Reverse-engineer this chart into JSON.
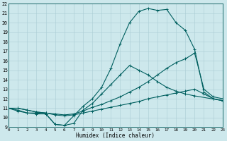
{
  "xlabel": "Humidex (Indice chaleur)",
  "bg_color": "#cde8ec",
  "grid_color": "#aacdd4",
  "line_color": "#005f5f",
  "xlim": [
    0,
    23
  ],
  "ylim": [
    9,
    22
  ],
  "xticks": [
    0,
    1,
    2,
    3,
    4,
    5,
    6,
    7,
    8,
    9,
    10,
    11,
    12,
    13,
    14,
    15,
    16,
    17,
    18,
    19,
    20,
    21,
    22,
    23
  ],
  "yticks": [
    9,
    10,
    11,
    12,
    13,
    14,
    15,
    16,
    17,
    18,
    19,
    20,
    21,
    22
  ],
  "curve1_x": [
    0,
    1,
    2,
    3,
    4,
    5,
    6,
    7,
    8,
    9,
    10,
    11,
    12,
    13,
    14,
    15,
    16,
    17,
    18,
    19,
    20,
    21,
    22,
    23
  ],
  "curve1_y": [
    11,
    10.7,
    10.5,
    10.5,
    10.4,
    9.3,
    9.2,
    10.2,
    11.2,
    12.0,
    13.2,
    15.2,
    17.8,
    20.0,
    21.2,
    21.5,
    21.3,
    21.4,
    20.0,
    19.2,
    17.2,
    12.7,
    12.0,
    11.8
  ],
  "curve2_x": [
    0,
    1,
    2,
    3,
    4,
    5,
    6,
    7,
    8,
    9,
    10,
    11,
    12,
    13,
    14,
    15,
    16,
    17,
    18,
    19,
    20,
    21,
    22,
    23
  ],
  "curve2_y": [
    11,
    11.0,
    10.8,
    10.6,
    10.5,
    10.4,
    10.3,
    10.4,
    10.7,
    11.1,
    11.4,
    11.8,
    12.2,
    12.7,
    13.2,
    13.8,
    14.5,
    15.2,
    15.8,
    16.2,
    16.8,
    13.0,
    12.2,
    12.0
  ],
  "curve3_x": [
    0,
    1,
    2,
    3,
    4,
    5,
    6,
    7,
    8,
    9,
    10,
    11,
    12,
    13,
    14,
    15,
    16,
    17,
    18,
    19,
    20,
    21,
    22,
    23
  ],
  "curve3_y": [
    11,
    11.0,
    10.8,
    10.6,
    10.5,
    10.3,
    10.2,
    10.3,
    10.5,
    10.7,
    10.9,
    11.1,
    11.3,
    11.5,
    11.7,
    12.0,
    12.2,
    12.4,
    12.6,
    12.8,
    13.0,
    12.5,
    12.0,
    11.8
  ],
  "curve4_x": [
    0,
    1,
    2,
    3,
    4,
    5,
    6,
    7,
    8,
    9,
    10,
    11,
    12,
    13,
    14,
    15,
    16,
    17,
    18,
    19,
    20,
    23
  ],
  "curve4_y": [
    11,
    10.8,
    10.5,
    10.4,
    10.4,
    9.3,
    9.2,
    9.4,
    10.8,
    11.5,
    12.5,
    13.5,
    14.5,
    15.5,
    15.0,
    14.5,
    13.8,
    13.2,
    12.8,
    12.5,
    12.3,
    11.8
  ]
}
